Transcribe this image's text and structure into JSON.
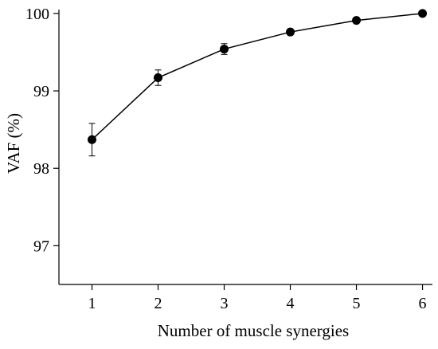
{
  "chart_data": {
    "type": "line",
    "xlabel": "Number of muscle synergies",
    "ylabel": "VAF (%)",
    "x": [
      1,
      2,
      3,
      4,
      5,
      6
    ],
    "xticks": [
      "1",
      "2",
      "3",
      "4",
      "5",
      "6"
    ],
    "yticks": [
      "97",
      "98",
      "99",
      "100"
    ],
    "xlim": [
      0.5,
      6.15
    ],
    "ylim": [
      96.5,
      100.05
    ],
    "grid": false,
    "series": [
      {
        "values": [
          98.37,
          99.17,
          99.54,
          99.76,
          99.91,
          100.0
        ],
        "error": [
          0.21,
          0.1,
          0.07,
          0.03,
          0.02,
          0.01
        ],
        "color": "#000000",
        "marker": "circle"
      }
    ]
  }
}
